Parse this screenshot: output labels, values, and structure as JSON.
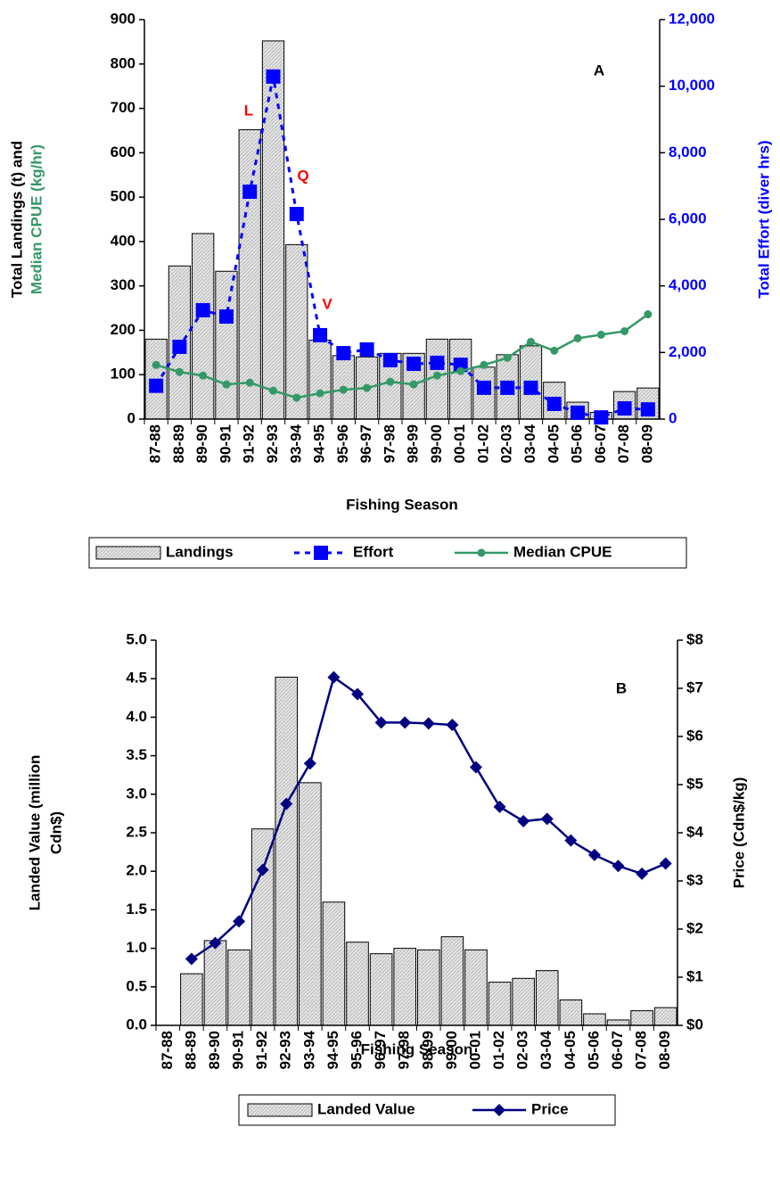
{
  "chart_data": [
    {
      "type": "combo",
      "xlabel": "Fishing Season",
      "ylabel": [
        "Total Landings (t) and",
        "Median CPUE (kg/hr)"
      ],
      "ylabel_colors": [
        "#000000",
        "#339966"
      ],
      "y2label": "Total Effort (diver hrs)",
      "y2_color": "#0000ff",
      "categories": [
        "87-88",
        "88-89",
        "89-90",
        "90-91",
        "91-92",
        "92-93",
        "93-94",
        "94-95",
        "95-96",
        "96-97",
        "97-98",
        "98-99",
        "99-00",
        "00-01",
        "01-02",
        "02-03",
        "03-04",
        "04-05",
        "05-06",
        "06-07",
        "07-08",
        "08-09"
      ],
      "ylim": [
        0,
        900
      ],
      "yticks": [
        0,
        100,
        200,
        300,
        400,
        500,
        600,
        700,
        800,
        900
      ],
      "y2lim": [
        0,
        12000
      ],
      "y2ticks": [
        0,
        {
          "value": 2000,
          "label": "2,000"
        },
        {
          "value": 4000,
          "label": "4,000"
        },
        {
          "value": 6000,
          "label": "6,000"
        },
        {
          "value": 8000,
          "label": "8,000"
        },
        {
          "value": 10000,
          "label": "10,000"
        },
        {
          "value": 12000,
          "label": "12,000"
        }
      ],
      "series": [
        {
          "name": "Landings",
          "type": "bar",
          "color": "#d9d9d9",
          "values": [
            180,
            345,
            418,
            333,
            652,
            852,
            393,
            178,
            143,
            140,
            148,
            148,
            180,
            180,
            117,
            145,
            165,
            83,
            38,
            15,
            62,
            70
          ]
        },
        {
          "name": "Effort",
          "type": "line",
          "axis": "y2",
          "color": "#0000ff",
          "dashed": true,
          "marker": "square",
          "values": [
            1000,
            2170,
            3270,
            3080,
            6830,
            10290,
            6160,
            2520,
            1980,
            2090,
            1770,
            1660,
            1690,
            1630,
            940,
            940,
            940,
            455,
            190,
            50,
            320,
            290
          ]
        },
        {
          "name": "Median CPUE",
          "type": "line",
          "color": "#339966",
          "marker": "circle",
          "values": [
            122,
            106,
            98,
            78,
            82,
            64,
            48,
            58,
            66,
            70,
            84,
            78,
            98,
            108,
            122,
            138,
            174,
            154,
            182,
            190,
            198,
            236
          ]
        }
      ],
      "annotations": [
        "A",
        "L",
        "Q",
        "V"
      ],
      "annotation_colors": [
        "#000000",
        "#ff0000",
        "#ff0000",
        "#ff0000"
      ]
    },
    {
      "type": "combo",
      "xlabel": "Fishing Season",
      "ylabel": [
        "Landed Value (million",
        "Cdn$)"
      ],
      "ylabel_colors": [
        "#000000",
        "#000000"
      ],
      "y2label": "Price (Cdn$/kg)",
      "y2_color": "#000000",
      "categories": [
        "87-88",
        "88-89",
        "89-90",
        "90-91",
        "91-92",
        "92-93",
        "93-94",
        "94-95",
        "95-96",
        "96-97",
        "97-98",
        "98-99",
        "99-00",
        "00-01",
        "01-02",
        "02-03",
        "03-04",
        "04-05",
        "05-06",
        "06-07",
        "07-08",
        "08-09"
      ],
      "ylim": [
        0,
        5
      ],
      "yticks": [
        {
          "value": 0,
          "label": "0.0"
        },
        0.5,
        {
          "value": 1,
          "label": "1.0"
        },
        1.5,
        {
          "value": 2,
          "label": "2.0"
        },
        2.5,
        {
          "value": 3,
          "label": "3.0"
        },
        3.5,
        {
          "value": 4,
          "label": "4.0"
        },
        4.5,
        {
          "value": 5,
          "label": "5.0"
        }
      ],
      "y2lim": [
        0,
        8
      ],
      "y2ticks": [
        {
          "value": 0,
          "label": "$0"
        },
        {
          "value": 1,
          "label": "$1"
        },
        {
          "value": 2,
          "label": "$2"
        },
        {
          "value": 3,
          "label": "$3"
        },
        {
          "value": 4,
          "label": "$4"
        },
        {
          "value": 5,
          "label": "$5"
        },
        {
          "value": 6,
          "label": "$6"
        },
        {
          "value": 7,
          "label": "$7"
        },
        {
          "value": 8,
          "label": "$8"
        }
      ],
      "series": [
        {
          "name": "Landed Value",
          "type": "bar",
          "color": "#d9d9d9",
          "values": [
            null,
            0.67,
            1.1,
            0.98,
            2.55,
            4.52,
            3.15,
            1.6,
            1.08,
            0.93,
            1.0,
            0.98,
            1.15,
            0.98,
            0.56,
            0.61,
            0.71,
            0.33,
            0.15,
            0.07,
            0.19,
            0.23
          ]
        },
        {
          "name": "Price",
          "type": "line",
          "axis": "y2",
          "color": "#000080",
          "marker": "diamond",
          "values": [
            null,
            1.38,
            1.71,
            2.16,
            3.23,
            4.6,
            5.44,
            7.23,
            6.88,
            6.29,
            6.29,
            6.27,
            6.24,
            5.36,
            4.54,
            4.24,
            4.29,
            3.84,
            3.54,
            3.31,
            3.15,
            3.36
          ]
        }
      ],
      "annotations": [
        "B"
      ],
      "annotation_colors": [
        "#000000"
      ]
    }
  ]
}
